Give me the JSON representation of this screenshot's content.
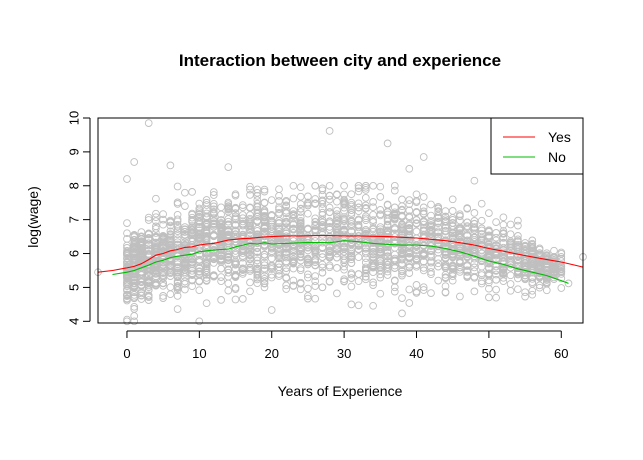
{
  "chart_data": {
    "type": "scatter",
    "title": "Interaction between city and experience",
    "xlabel": "Years of Experience",
    "ylabel": "log(wage)",
    "xlim": [
      -4,
      63
    ],
    "ylim": [
      3.95,
      10.0
    ],
    "xticks": [
      0,
      10,
      20,
      30,
      40,
      50,
      60
    ],
    "yticks": [
      4,
      5,
      6,
      7,
      8,
      9,
      10
    ],
    "grid": false,
    "legend": {
      "placement": "top-right",
      "entries": [
        "Yes",
        "No"
      ]
    },
    "scatter_color": "#bfbfbf",
    "scatter_band": {
      "x": [
        -4,
        0,
        5,
        10,
        15,
        20,
        25,
        30,
        35,
        40,
        45,
        50,
        55,
        60,
        63
      ],
      "center": [
        5.45,
        5.55,
        5.9,
        6.15,
        6.3,
        6.4,
        6.42,
        6.45,
        6.4,
        6.35,
        6.25,
        6.0,
        5.75,
        5.5,
        5.4
      ],
      "spread": [
        0.3,
        0.9,
        1.1,
        1.2,
        1.25,
        1.25,
        1.25,
        1.25,
        1.2,
        1.15,
        1.05,
        0.9,
        0.7,
        0.45,
        0.3
      ]
    },
    "scatter_outliers": [
      {
        "x": 3,
        "y": 9.85
      },
      {
        "x": 28,
        "y": 9.62
      },
      {
        "x": 36,
        "y": 9.25
      },
      {
        "x": 41,
        "y": 8.85
      },
      {
        "x": 6,
        "y": 8.6
      },
      {
        "x": 14,
        "y": 8.55
      },
      {
        "x": 1,
        "y": 8.7
      },
      {
        "x": 39,
        "y": 8.5
      },
      {
        "x": 48,
        "y": 8.15
      },
      {
        "x": 0,
        "y": 8.2
      },
      {
        "x": -4,
        "y": 5.45
      },
      {
        "x": 63,
        "y": 5.9
      },
      {
        "x": 61,
        "y": 5.12
      },
      {
        "x": 60,
        "y": 5.9
      },
      {
        "x": 0,
        "y": 4.05
      }
    ],
    "series": [
      {
        "name": "Yes",
        "color": "#ff0000",
        "x": [
          -4,
          -2,
          0,
          1,
          2,
          3,
          4,
          5,
          6,
          7,
          8,
          9,
          10,
          11,
          12,
          13,
          14,
          15,
          16,
          17,
          18,
          19,
          20,
          22,
          24,
          26,
          28,
          30,
          32,
          34,
          36,
          38,
          40,
          42,
          44,
          46,
          48,
          50,
          52,
          54,
          56,
          58,
          60,
          62,
          63
        ],
        "y": [
          5.45,
          5.5,
          5.58,
          5.62,
          5.7,
          5.82,
          5.95,
          6.0,
          6.08,
          6.12,
          6.18,
          6.2,
          6.25,
          6.28,
          6.3,
          6.35,
          6.4,
          6.42,
          6.44,
          6.45,
          6.47,
          6.49,
          6.5,
          6.52,
          6.52,
          6.53,
          6.53,
          6.52,
          6.52,
          6.51,
          6.5,
          6.48,
          6.46,
          6.42,
          6.38,
          6.32,
          6.25,
          6.15,
          6.07,
          5.98,
          5.9,
          5.82,
          5.75,
          5.65,
          5.6
        ]
      },
      {
        "name": "No",
        "color": "#00bb00",
        "x": [
          -2,
          0,
          1,
          2,
          3,
          4,
          5,
          6,
          7,
          8,
          9,
          10,
          11,
          12,
          13,
          14,
          15,
          16,
          17,
          18,
          19,
          20,
          22,
          24,
          26,
          28,
          30,
          32,
          34,
          36,
          38,
          40,
          42,
          44,
          46,
          48,
          50,
          52,
          54,
          56,
          58,
          60,
          61
        ],
        "y": [
          5.38,
          5.45,
          5.5,
          5.58,
          5.66,
          5.75,
          5.8,
          5.88,
          5.92,
          5.95,
          5.98,
          6.05,
          6.08,
          6.1,
          6.12,
          6.13,
          6.2,
          6.25,
          6.3,
          6.28,
          6.32,
          6.28,
          6.3,
          6.32,
          6.33,
          6.32,
          6.38,
          6.35,
          6.3,
          6.27,
          6.25,
          6.25,
          6.22,
          6.15,
          6.05,
          5.92,
          5.78,
          5.68,
          5.55,
          5.45,
          5.35,
          5.2,
          5.12
        ]
      }
    ]
  }
}
